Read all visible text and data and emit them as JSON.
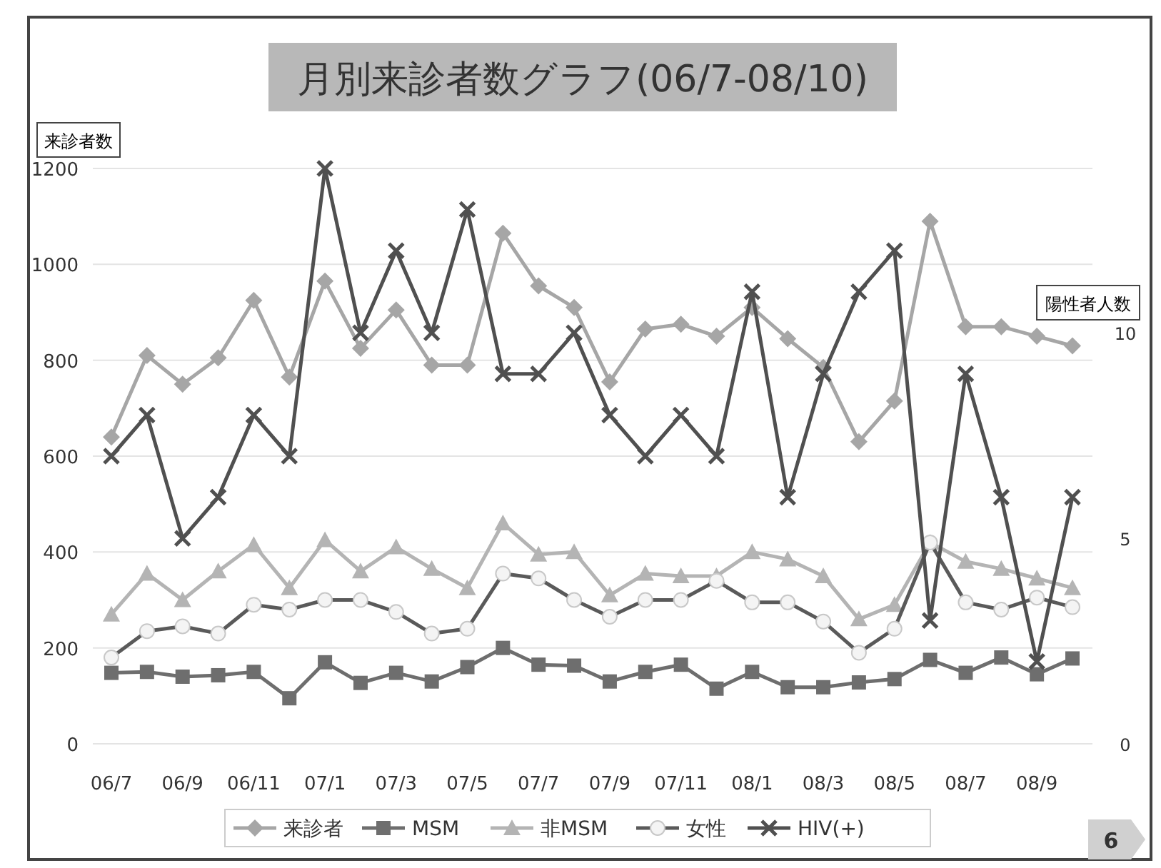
{
  "chart_data": {
    "type": "line",
    "title": "月別来診者数グラフ(06/7-08/10)",
    "ylabel": "来診者数",
    "y2label": "陽性者人数",
    "categories": [
      "06/7",
      null,
      "06/9",
      null,
      "06/11",
      null,
      "07/1",
      null,
      "07/3",
      null,
      "07/5",
      null,
      "07/7",
      null,
      "07/9",
      null,
      "07/11",
      null,
      "08/1",
      null,
      "08/3",
      null,
      "08/5",
      null,
      "08/7",
      null,
      "08/9",
      null
    ],
    "series": [
      {
        "name": "来診者",
        "color": "#a6a6a6",
        "marker": "diamond",
        "values": [
          640,
          810,
          750,
          805,
          925,
          765,
          965,
          825,
          905,
          790,
          790,
          1065,
          955,
          910,
          755,
          865,
          875,
          850,
          910,
          845,
          785,
          630,
          715,
          1090,
          870,
          870,
          850,
          830
        ]
      },
      {
        "name": "MSM",
        "color": "#6e6e6e",
        "marker": "square",
        "values": [
          148,
          150,
          140,
          143,
          150,
          95,
          170,
          127,
          148,
          130,
          160,
          200,
          165,
          163,
          130,
          150,
          165,
          115,
          150,
          118,
          118,
          128,
          135,
          175,
          148,
          180,
          145,
          178
        ]
      },
      {
        "name": "非MSM",
        "color": "#b4b4b4",
        "marker": "triangle",
        "values": [
          270,
          355,
          300,
          360,
          415,
          325,
          425,
          360,
          410,
          365,
          325,
          460,
          395,
          400,
          310,
          355,
          350,
          350,
          400,
          385,
          350,
          260,
          290,
          420,
          380,
          365,
          345,
          325
        ]
      },
      {
        "name": "女性",
        "color": "#5a5a5a",
        "marker": "circle",
        "values": [
          180,
          235,
          245,
          230,
          290,
          280,
          300,
          300,
          275,
          230,
          240,
          355,
          345,
          300,
          265,
          300,
          300,
          340,
          295,
          295,
          255,
          190,
          240,
          420,
          295,
          280,
          305,
          285
        ]
      },
      {
        "name": "HIV(+)",
        "color": "#505050",
        "marker": "cross",
        "axis": "y2",
        "values": [
          7,
          8,
          5,
          6,
          8,
          7,
          14,
          10,
          12,
          10,
          13,
          9,
          9,
          10,
          8,
          7,
          8,
          7,
          11,
          6,
          9,
          11,
          12,
          3,
          9,
          6,
          2,
          6
        ]
      }
    ],
    "ylim": [
      0,
      1200
    ],
    "yticks": [
      0,
      200,
      400,
      600,
      800,
      1000,
      1200
    ],
    "y2lim": [
      0,
      14
    ],
    "y2ticks": [
      0,
      5,
      10
    ],
    "grid": "y",
    "legend": "bottom",
    "annotations": [
      "6"
    ]
  }
}
